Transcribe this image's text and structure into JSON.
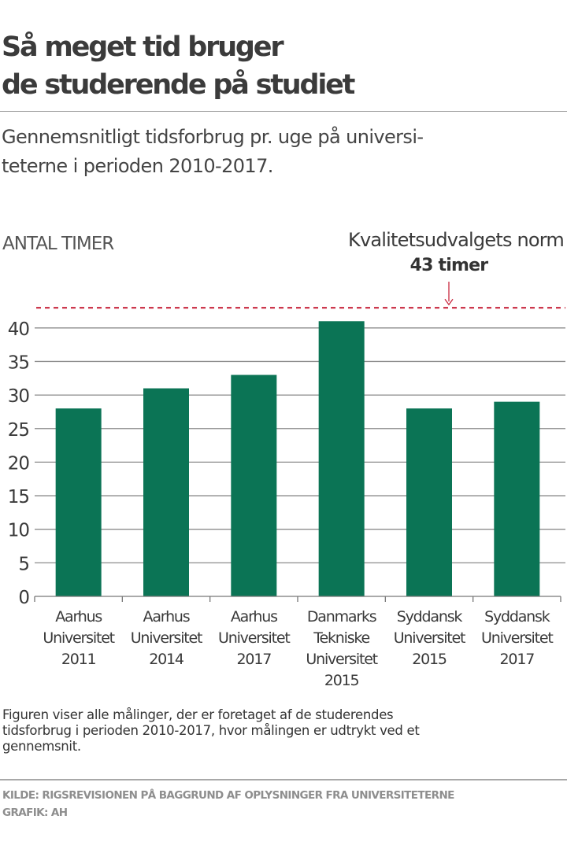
{
  "header": {
    "title_lines": [
      "Så meget tid bruger",
      "de studerende på studiet"
    ],
    "subtitle_lines": [
      "Gennemsnitligt tidsforbrug pr. uge på universi-",
      "teterne i perioden 2010-2017."
    ]
  },
  "chart_data": {
    "type": "bar",
    "title": "Så meget tid bruger de studerende på studiet",
    "subtitle": "Gennemsnitligt tidsforbrug pr. uge på universiteterne i perioden 2010-2017.",
    "ylabel": "ANTAL TIMER",
    "xlabel": "",
    "categories": [
      [
        "Aarhus",
        "Universitet",
        "2011"
      ],
      [
        "Aarhus",
        "Universitet",
        "2014"
      ],
      [
        "Aarhus",
        "Universitet",
        "2017"
      ],
      [
        "Danmarks",
        "Tekniske",
        "Universitet",
        "2015"
      ],
      [
        "Syddansk",
        "Universitet",
        "2015"
      ],
      [
        "Syddansk",
        "Universitet",
        "2017"
      ]
    ],
    "values": [
      28,
      31,
      33,
      41,
      28,
      29
    ],
    "ylim": [
      0,
      43
    ],
    "yticks": [
      "0",
      "5",
      "10",
      "15",
      "20",
      "25",
      "30",
      "35",
      "40"
    ],
    "grid": true,
    "reference_line": {
      "value": 43,
      "label": "Kvalitetsudvalgets norm",
      "value_label": "43 timer",
      "style": "dashed"
    },
    "colors": {
      "bar": "#0b7455",
      "reference": "#c8283f",
      "grid": "#8c8c8c"
    }
  },
  "footer": {
    "caption_lines": [
      "Figuren viser alle målinger, der er foretaget af de studerendes",
      "tidsforbrug i perioden 2010-2017, hvor målingen er udtrykt ved et",
      "gennemsnit."
    ],
    "source_lines": [
      "KILDE: RIGSREVISIONEN PÅ BAGGRUND AF OPLYSNINGER FRA UNIVERSITETERNE",
      "GRAFIK: AH"
    ]
  }
}
